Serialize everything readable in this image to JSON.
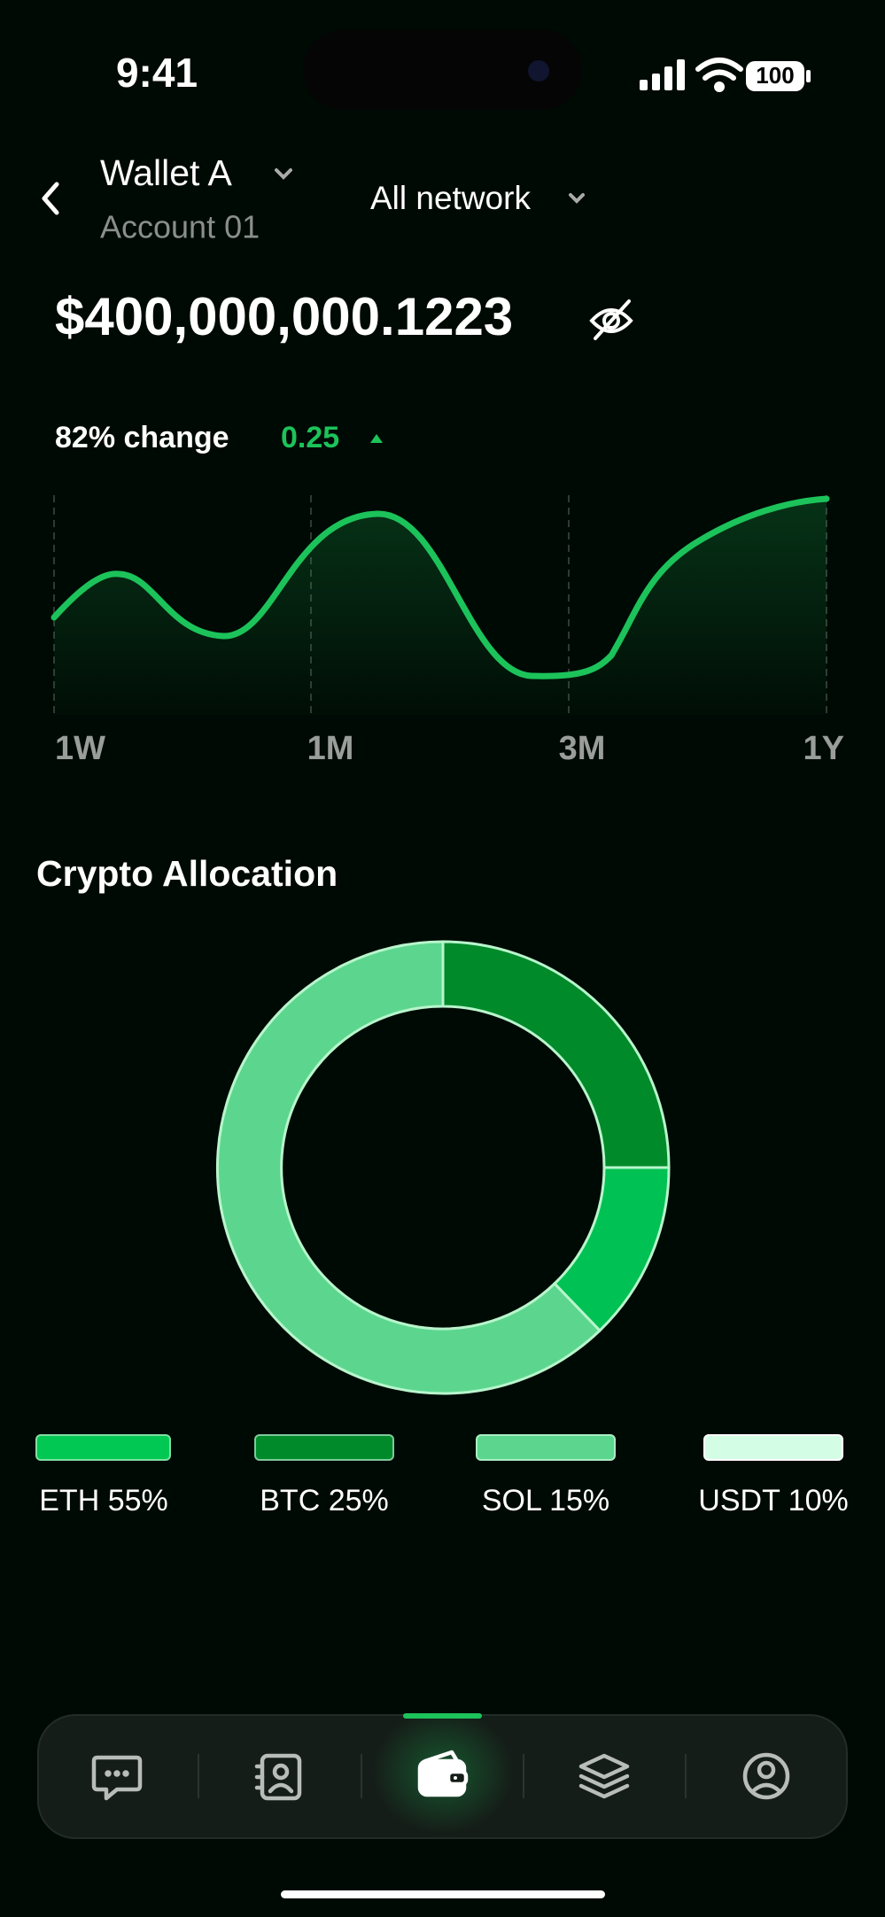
{
  "status": {
    "time": "9:41",
    "battery": "100"
  },
  "header": {
    "wallet": "Wallet A",
    "account": "Account 01",
    "network": "All network"
  },
  "balance": "$400,000,000.1223",
  "change": {
    "label": "82% change",
    "value": "0.25"
  },
  "chart": {
    "x_labels": [
      "1W",
      "1M",
      "3M",
      "1Y"
    ]
  },
  "allocation": {
    "title": "Crypto Allocation",
    "legend": [
      "ETH 55%",
      "BTC 25%",
      "SOL 15%",
      "USDT 10%"
    ]
  }
}
